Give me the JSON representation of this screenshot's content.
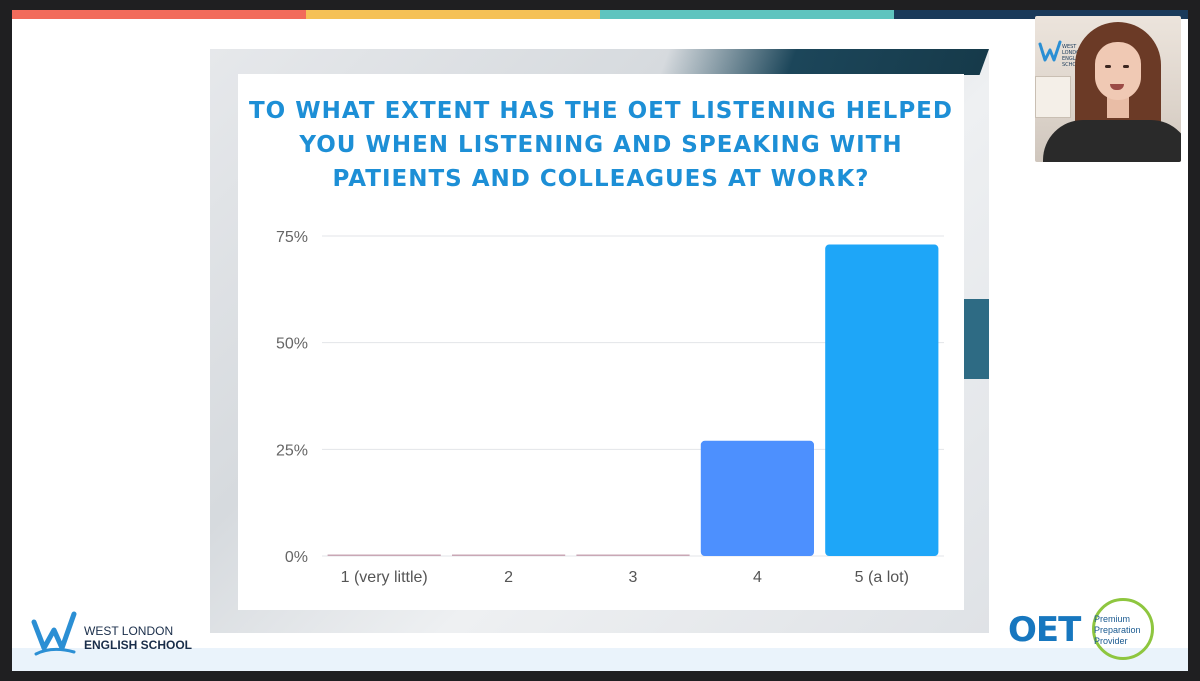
{
  "slide": {
    "stripe_colors": [
      "#f26b5b",
      "#f5c157",
      "#5fc4bf",
      "#1a3a5a"
    ],
    "title_lines": [
      "TO WHAT EXTENT HAS THE OET LISTENING HELPED",
      "YOU WHEN LISTENING AND SPEAKING WITH",
      "PATIENTS AND COLLEAGUES AT WORK?"
    ]
  },
  "chart_data": {
    "type": "bar",
    "title": "TO WHAT EXTENT HAS THE OET LISTENING HELPED YOU WHEN LISTENING AND SPEAKING WITH PATIENTS AND COLLEAGUES AT WORK?",
    "categories": [
      "1 (very little)",
      "2",
      "3",
      "4",
      "5 (a lot)"
    ],
    "values": [
      0,
      0,
      0,
      27,
      73
    ],
    "unit": "%",
    "ylim": [
      0,
      75
    ],
    "yticks": [
      "0%",
      "25%",
      "50%",
      "75%"
    ],
    "ytick_values": [
      0,
      25,
      50,
      75
    ],
    "grid": true,
    "bar_colors": [
      "#4d90fe",
      "#4d90fe",
      "#4d90fe",
      "#4d90fe",
      "#1ea6f8"
    ]
  },
  "branding": {
    "school_name_line1": "WEST LONDON",
    "school_name_line2": "ENGLISH SCHOOL",
    "oet_word": "OET",
    "oet_badge_lines": [
      "Premium",
      "Preparation",
      "Provider"
    ],
    "webcam_logo_lines": [
      "WEST",
      "LONDON",
      "ENGLISH",
      "SCHOOL"
    ]
  }
}
